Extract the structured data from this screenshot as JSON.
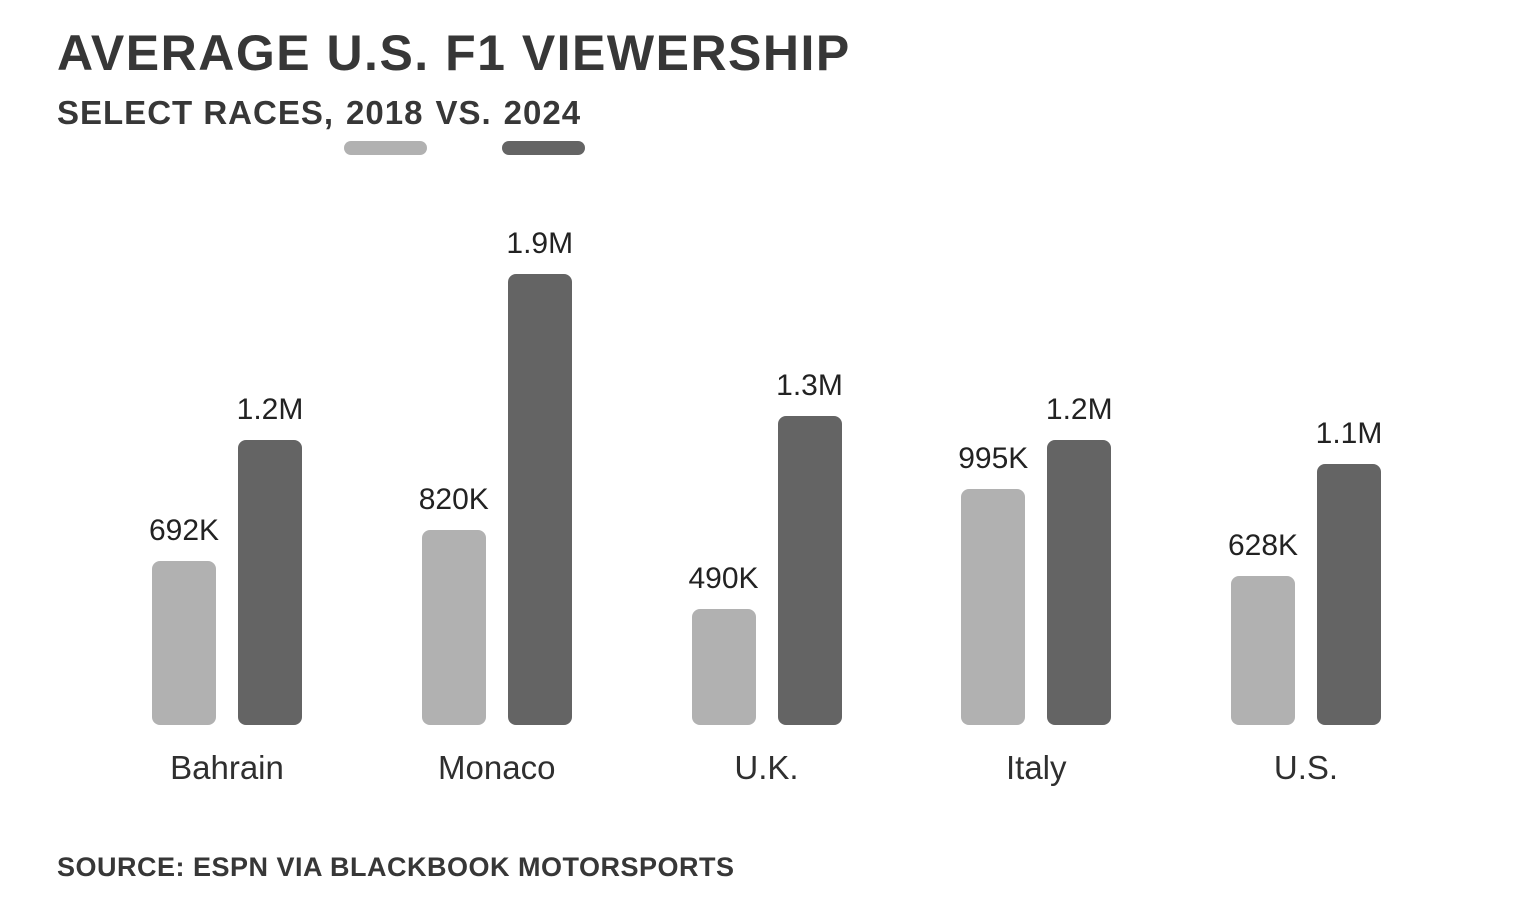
{
  "header": {
    "title": "AVERAGE U.S. F1 VIEWERSHIP",
    "subtitle_prefix": "SELECT RACES,",
    "year_2018": "2018",
    "vs_text": "VS.",
    "year_2024": "2024"
  },
  "colors": {
    "bar_2018": "#b1b1b1",
    "bar_2024": "#646464",
    "text": "#2e2e2e"
  },
  "chart_data": {
    "type": "bar",
    "title": "AVERAGE U.S. F1 VIEWERSHIP",
    "subtitle": "SELECT RACES, 2018 VS. 2024",
    "categories": [
      "Bahrain",
      "Monaco",
      "U.K.",
      "Italy",
      "U.S."
    ],
    "series": [
      {
        "name": "2018",
        "color": "#b1b1b1",
        "values": [
          692000,
          820000,
          490000,
          995000,
          628000
        ],
        "labels": [
          "692K",
          "820K",
          "490K",
          "995K",
          "628K"
        ]
      },
      {
        "name": "2024",
        "color": "#646464",
        "values": [
          1200000,
          1900000,
          1300000,
          1200000,
          1100000
        ],
        "labels": [
          "1.2M",
          "1.9M",
          "1.3M",
          "1.2M",
          "1.1M"
        ]
      }
    ],
    "ylim": [
      0,
      1900000
    ],
    "grid": false,
    "legend_position": "under-subtitle-years",
    "value_labels": "above-bars"
  },
  "footer": {
    "source": "SOURCE: ESPN VIA BLACKBOOK MOTORSPORTS"
  }
}
